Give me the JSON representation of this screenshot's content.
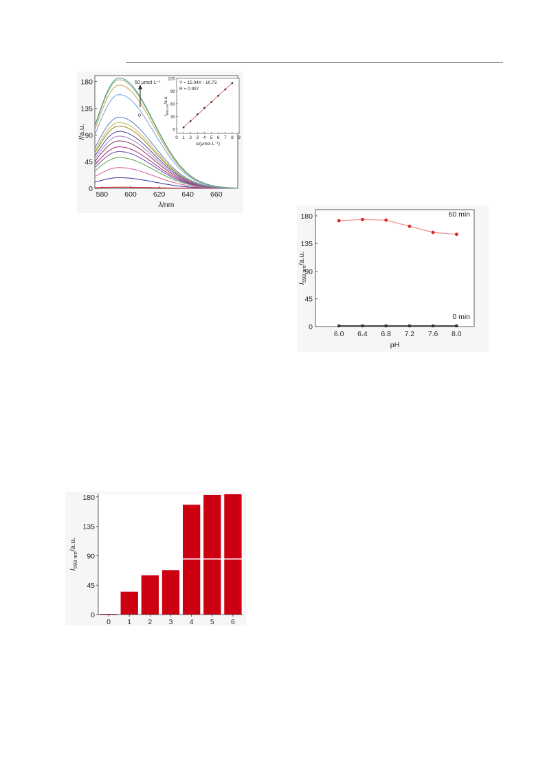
{
  "chart_data": [
    {
      "type": "line",
      "xlabel": "λ/nm",
      "ylabel": "I/a.u.",
      "xlim": [
        575,
        675
      ],
      "ylim": [
        0,
        190
      ],
      "xticks": [
        "580",
        "600",
        "620",
        "640",
        "660"
      ],
      "yticks": [
        "0",
        "45",
        "90",
        "135",
        "180"
      ],
      "peak_x": 592,
      "peaks": [
        2,
        18,
        35,
        52,
        62,
        70,
        80,
        88,
        96,
        105,
        111,
        120,
        158,
        174,
        183,
        186
      ],
      "series_colors": [
        "#cc2222",
        "#4444aa",
        "#dd66aa",
        "#66aa55",
        "#7755aa",
        "#aa3388",
        "#884466",
        "#aa88cc",
        "#555599",
        "#998833",
        "#ccbb55",
        "#6688cc",
        "#77aadd",
        "#ccaa55",
        "#88bb88",
        "#55998a"
      ],
      "annotation_top": "50 μmol·L⁻¹",
      "annotation_bottom": "0",
      "inset": {
        "type": "scatter",
        "xlabel": "c/(μmol·L⁻¹)",
        "ylabel": "I593 nm/a.u.",
        "xlim": [
          0,
          9
        ],
        "ylim": [
          -10,
          120
        ],
        "xticks": [
          "0",
          "1",
          "2",
          "3",
          "4",
          "5",
          "6",
          "7",
          "8",
          "9"
        ],
        "yticks": [
          "0",
          "30",
          "60",
          "90",
          "120"
        ],
        "x": [
          1,
          2,
          3,
          4,
          5,
          6,
          7,
          8
        ],
        "y": [
          4,
          19,
          35,
          50,
          64,
          79,
          94,
          109
        ],
        "equation": "Y = 15.04X - 10.73",
        "r_value": "R = 0.997"
      }
    },
    {
      "type": "line",
      "xlabel": "pH",
      "ylabel": "I593 nm/a.u.",
      "xlim": [
        5.6,
        8.3
      ],
      "ylim": [
        0,
        190
      ],
      "xticks": [
        "6.0",
        "6.4",
        "6.8",
        "7.2",
        "7.6",
        "8.0"
      ],
      "yticks": [
        "0",
        "45",
        "90",
        "135",
        "180"
      ],
      "x": [
        6.0,
        6.4,
        6.8,
        7.2,
        7.6,
        8.0
      ],
      "series": [
        {
          "name": "60 min",
          "values": [
            172,
            174,
            173,
            163,
            153,
            150
          ],
          "color": "#dd2222"
        },
        {
          "name": "0 min",
          "values": [
            1,
            1,
            1,
            1,
            1,
            1
          ],
          "color": "#333333"
        }
      ]
    },
    {
      "type": "bar",
      "ylabel": "I593 nm/a.u.",
      "ylim": [
        0,
        185
      ],
      "categories": [
        "0",
        "1",
        "2",
        "3",
        "4",
        "5",
        "6"
      ],
      "values": [
        1,
        35,
        60,
        68,
        168,
        183,
        184
      ],
      "yticks": [
        "0",
        "45",
        "90",
        "135",
        "180"
      ],
      "bar_color": "#cc0011"
    }
  ]
}
